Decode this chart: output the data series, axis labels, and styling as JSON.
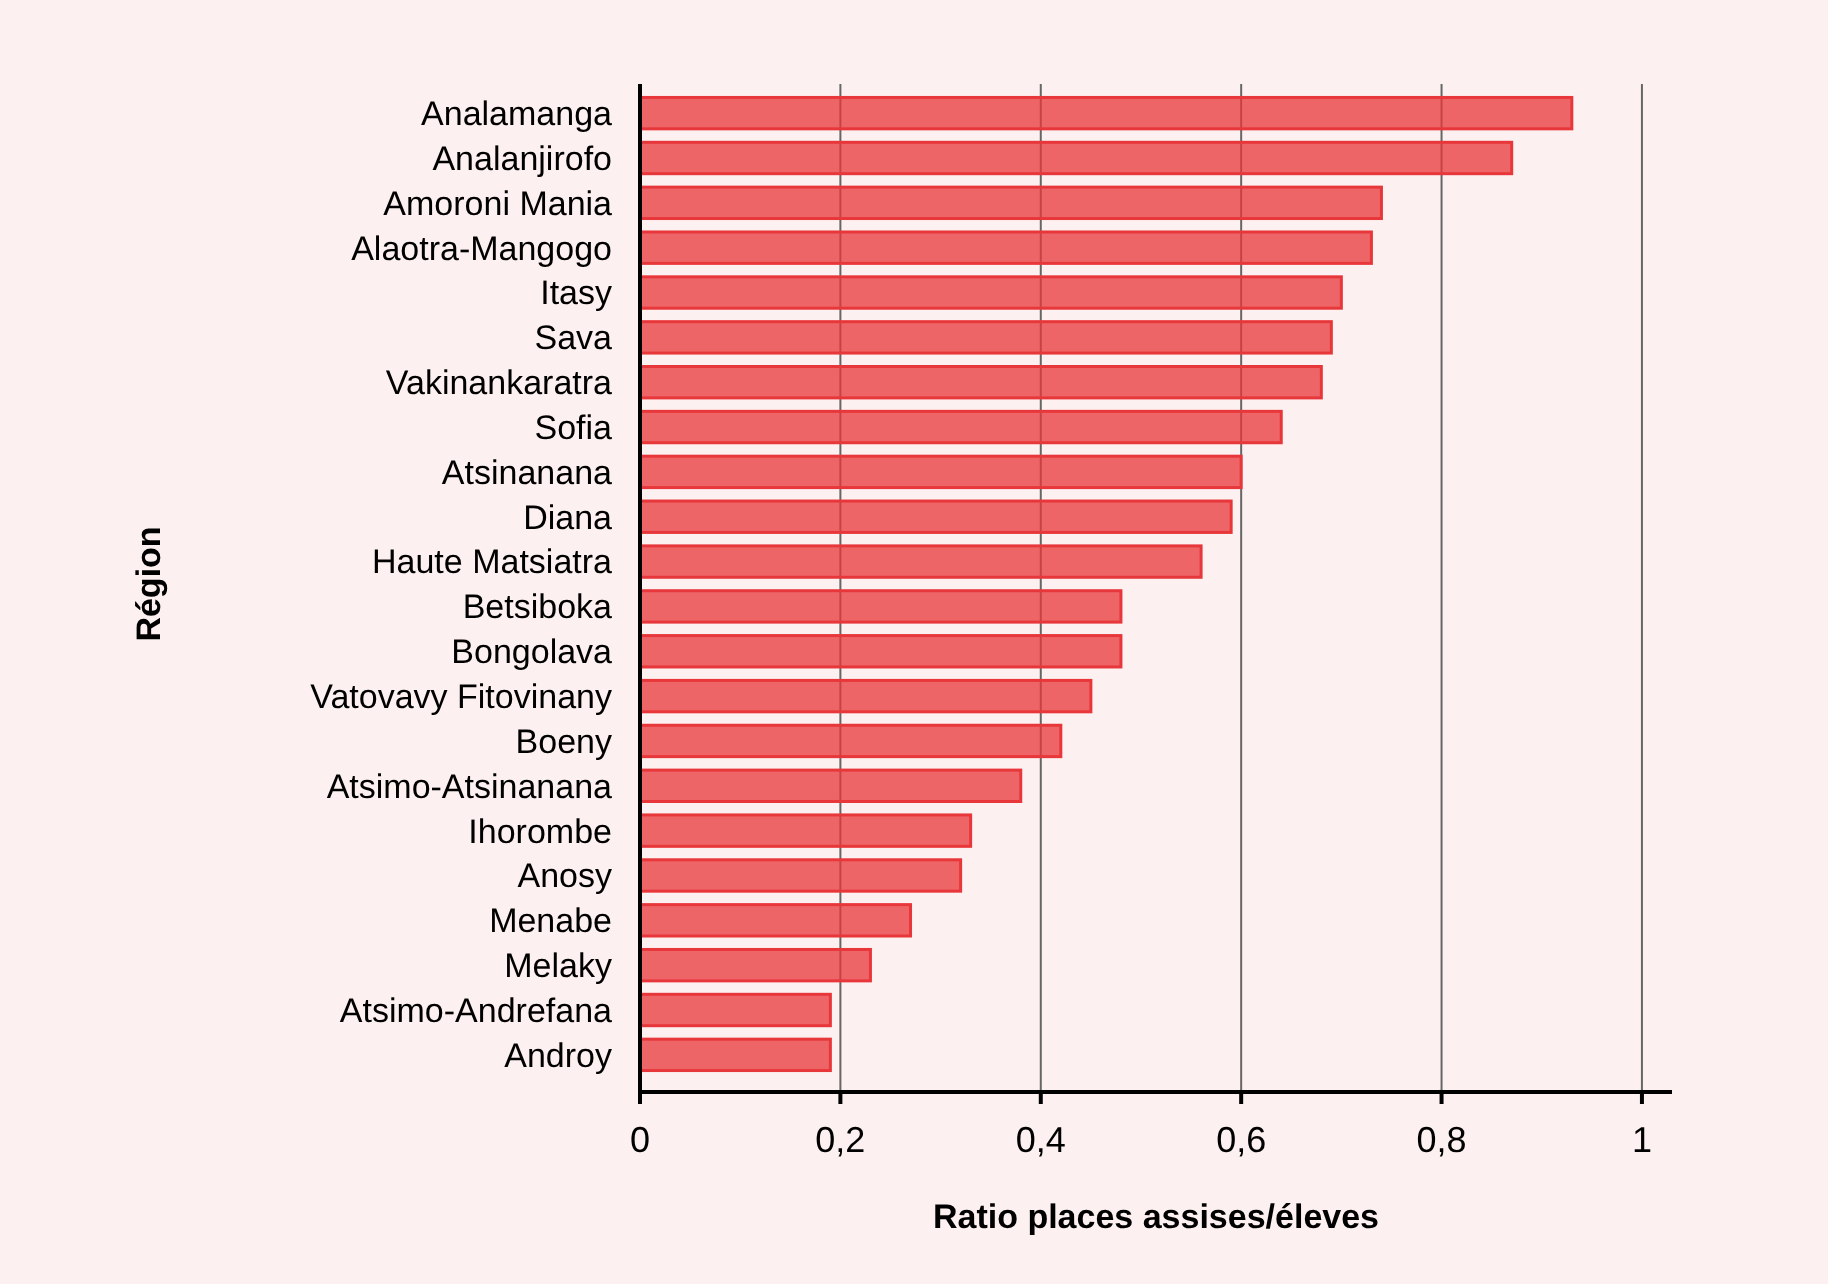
{
  "chart_data": {
    "type": "bar",
    "orientation": "horizontal",
    "xlabel": "Ratio places assises/éleves",
    "ylabel": "Région",
    "categories": [
      "Analamanga",
      "Analanjirofo",
      "Amoroni Mania",
      "Alaotra-Mangogo",
      "Itasy",
      "Sava",
      "Vakinankaratra",
      "Sofia",
      "Atsinanana",
      "Diana",
      "Haute Matsiatra",
      "Betsiboka",
      "Bongolava",
      "Vatovavy Fitovinany",
      "Boeny",
      "Atsimo-Atsinanana",
      "Ihorombe",
      "Anosy",
      "Menabe",
      "Melaky",
      "Atsimo-Andrefana",
      "Androy"
    ],
    "values": [
      0.93,
      0.87,
      0.74,
      0.73,
      0.7,
      0.69,
      0.68,
      0.64,
      0.6,
      0.59,
      0.56,
      0.48,
      0.48,
      0.45,
      0.42,
      0.38,
      0.33,
      0.32,
      0.27,
      0.23,
      0.19,
      0.19
    ],
    "color": "#e8373a",
    "xlim": [
      0,
      1.03
    ],
    "xticks": [
      0,
      {
        "value": 0.2,
        "label": "0,2"
      },
      {
        "value": 0.4,
        "label": "0,4"
      },
      {
        "value": 0.6,
        "label": "0,6"
      },
      {
        "value": 0.8,
        "label": "0,8"
      },
      1
    ],
    "grid": "x"
  }
}
